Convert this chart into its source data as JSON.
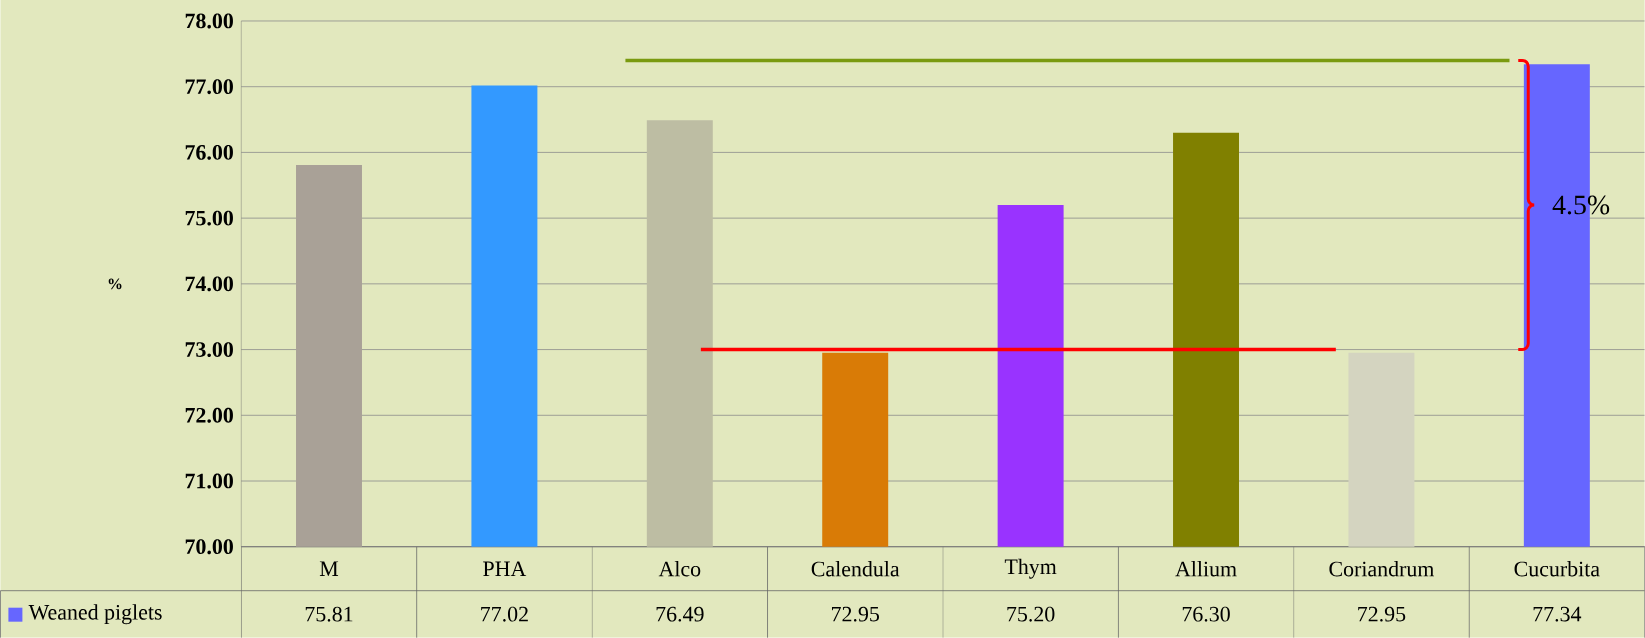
{
  "chart_data": {
    "type": "bar",
    "ylabel": "%",
    "categories": [
      "M",
      "PHA",
      "Alco",
      "Calendula",
      "Thym",
      "Allium",
      "Coriandrum",
      "Cucurbita"
    ],
    "series": [
      {
        "name": "Weaned piglets",
        "color": "#6666ff",
        "colors": [
          "#a9a197",
          "#3399ff",
          "#bdbda3",
          "#d97b06",
          "#9933ff",
          "#808000",
          "#d4d4c0",
          "#6666ff"
        ],
        "values": [
          75.81,
          77.02,
          76.49,
          72.95,
          75.2,
          76.3,
          72.95,
          77.34
        ],
        "value_labels": [
          "75.81",
          "77.02",
          "76.49",
          "72.95",
          "75.20",
          "76.30",
          "72.95",
          "77.34"
        ]
      }
    ],
    "ylim": [
      70,
      78
    ],
    "yticks": [
      {
        "value": 70,
        "label": "70.00"
      },
      {
        "value": 71,
        "label": "71.00"
      },
      {
        "value": 72,
        "label": "72.00"
      },
      {
        "value": 73,
        "label": "73.00"
      },
      {
        "value": 74,
        "label": "74.00"
      },
      {
        "value": 75,
        "label": "75.00"
      },
      {
        "value": 76,
        "label": "76.00"
      },
      {
        "value": 77,
        "label": "77.00"
      },
      {
        "value": 78,
        "label": "78.00"
      }
    ],
    "ref_lines": [
      {
        "axis": "y",
        "value": 73.0,
        "color": "#ff0000"
      },
      {
        "axis": "y",
        "value": 77.4,
        "color": "#7a9a10"
      }
    ],
    "annotations": [
      "4.5%"
    ],
    "grid": "y",
    "legend": "bottom"
  }
}
